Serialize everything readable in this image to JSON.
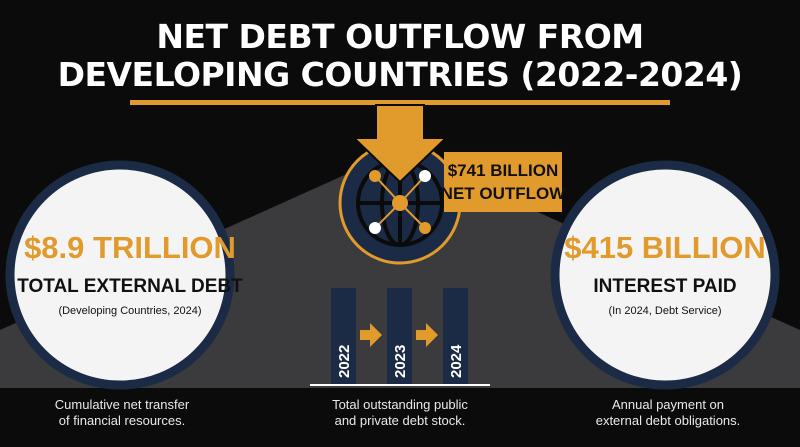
{
  "title": {
    "lines": [
      "NET DEBT OUTFLOW FROM",
      "DEVELOPING COUNTRIES (2022-2024)"
    ]
  },
  "callout": {
    "lines": [
      "$741 BILLION",
      "NET OUTFLOW"
    ]
  },
  "left_panel": {
    "value": "$8.9 TRILLION",
    "label": "TOTAL EXTERNAL DEBT",
    "note": "(Developing Countries, 2024)",
    "caption": [
      "Cumulative net transfer",
      "of financial resources."
    ]
  },
  "middle_panel": {
    "years": [
      "2022",
      "2023",
      "2024"
    ],
    "caption": [
      "Total outstanding public",
      "and private debt stock."
    ]
  },
  "right_panel": {
    "value": "$415 BILLION",
    "label": "INTEREST PAID",
    "note": "(In 2024, Debt Service)",
    "caption": [
      "Annual payment on",
      "external debt obligations."
    ]
  }
}
